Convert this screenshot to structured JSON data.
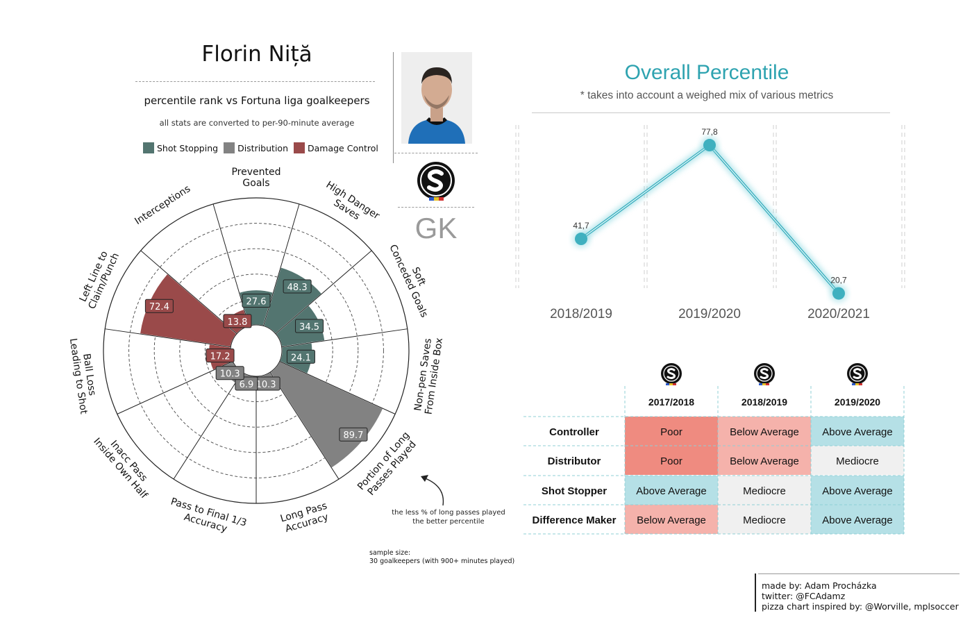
{
  "header": {
    "player_name": "Florin Niță",
    "subtitle": "percentile rank vs Fortuna liga goalkeepers",
    "note": "all stats are converted to per-90-minute average",
    "position": "GK"
  },
  "legend": [
    {
      "label": "Shot Stopping",
      "color": "#537570"
    },
    {
      "label": "Distribution",
      "color": "#828282"
    },
    {
      "label": "Damage Control",
      "color": "#9a4a4a"
    }
  ],
  "annotations": {
    "sample_size_line1": "sample size:",
    "sample_size_line2": "30 goalkeepers (with 900+ minutes played)",
    "arrow_note_line1": "the less % of long passes played",
    "arrow_note_line2": "the better percentile"
  },
  "chart_data": [
    {
      "type": "pizza",
      "title": "Florin Niță",
      "subtitle": "percentile rank vs Fortuna liga goalkeepers",
      "range": [
        0,
        100
      ],
      "categories": [
        {
          "name": "Shot Stopping",
          "color": "#537570"
        },
        {
          "name": "Distribution",
          "color": "#828282"
        },
        {
          "name": "Damage Control",
          "color": "#9a4a4a"
        }
      ],
      "slices": [
        {
          "label": "Prevented\nGoals",
          "value": 27.6,
          "group": "Shot Stopping"
        },
        {
          "label": "High Danger\nSaves",
          "value": 48.3,
          "group": "Shot Stopping"
        },
        {
          "label": "Soft\nConceded Goals",
          "value": 34.5,
          "group": "Shot Stopping"
        },
        {
          "label": "Non-pen Saves\nFrom Inside Box",
          "value": 24.1,
          "group": "Shot Stopping"
        },
        {
          "label": "Portion of Long\nPasses Played",
          "value": 89.7,
          "group": "Distribution"
        },
        {
          "label": "Long Pass\nAccuracy",
          "value": 10.3,
          "group": "Distribution"
        },
        {
          "label": "Pass to Final 1/3\nAccuracy",
          "value": 6.9,
          "group": "Distribution"
        },
        {
          "label": "Inacc Pass\nInside Own Half",
          "value": 10.3,
          "group": "Distribution"
        },
        {
          "label": "Ball Loss\nLeading to Shot",
          "value": 17.2,
          "group": "Damage Control"
        },
        {
          "label": "Left Line to\nClaim/Punch",
          "value": 72.4,
          "group": "Damage Control"
        },
        {
          "label": "Interceptions",
          "value": 13.8,
          "group": "Damage Control"
        }
      ]
    },
    {
      "type": "line",
      "title": "Overall Percentile",
      "subtitle": "* takes into account a weighed mix of various metrics",
      "categories": [
        "2018/2019",
        "2019/2020",
        "2020/2021"
      ],
      "series": [
        {
          "values": [
            41.7,
            77.8,
            20.7
          ]
        }
      ],
      "value_labels": [
        "41,7",
        "77,8",
        "20,7"
      ],
      "ylim": [
        0,
        100
      ],
      "color": "#3fb0bf"
    },
    {
      "type": "table",
      "columns": [
        "2017/2018",
        "2018/2019",
        "2019/2020"
      ],
      "rows": [
        {
          "label": "Controller",
          "values": [
            "Poor",
            "Below Average",
            "Above Average"
          ]
        },
        {
          "label": "Distributor",
          "values": [
            "Poor",
            "Below Average",
            "Mediocre"
          ]
        },
        {
          "label": "Shot Stopper",
          "values": [
            "Above Average",
            "Mediocre",
            "Above Average"
          ]
        },
        {
          "label": "Difference Maker",
          "values": [
            "Below Average",
            "Mediocre",
            "Above Average"
          ]
        }
      ],
      "rating_colors": {
        "Poor": "#ef8b80",
        "Below Average": "#f5b2ab",
        "Mediocre": "#f0f0f0",
        "Above Average": "#b5e0e6"
      }
    }
  ],
  "credits": {
    "line1": "made by: Adam Procházka",
    "line2": "twitter: @FCAdamz",
    "line3": "pizza chart inspired by: @Worville, mplsoccer"
  }
}
